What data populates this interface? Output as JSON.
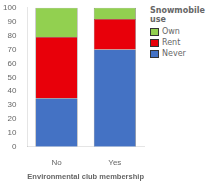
{
  "chart_data": {
    "type": "bar",
    "stacked": true,
    "categories": [
      "No",
      "Yes"
    ],
    "series": [
      {
        "name": "Never",
        "color": "#4472C4",
        "values": [
          35,
          70
        ]
      },
      {
        "name": "Rent",
        "color": "#E8000A",
        "values": [
          44,
          22
        ]
      },
      {
        "name": "Own",
        "color": "#92D050",
        "values": [
          21,
          8
        ]
      }
    ],
    "xlabel": "Environmental club membership",
    "legend_title": "Snowmobile\nuse",
    "legend": "right",
    "ylim": [
      0,
      100
    ],
    "yticks": [
      0,
      10,
      20,
      30,
      40,
      50,
      60,
      70,
      80,
      90,
      100
    ],
    "grid": false
  }
}
